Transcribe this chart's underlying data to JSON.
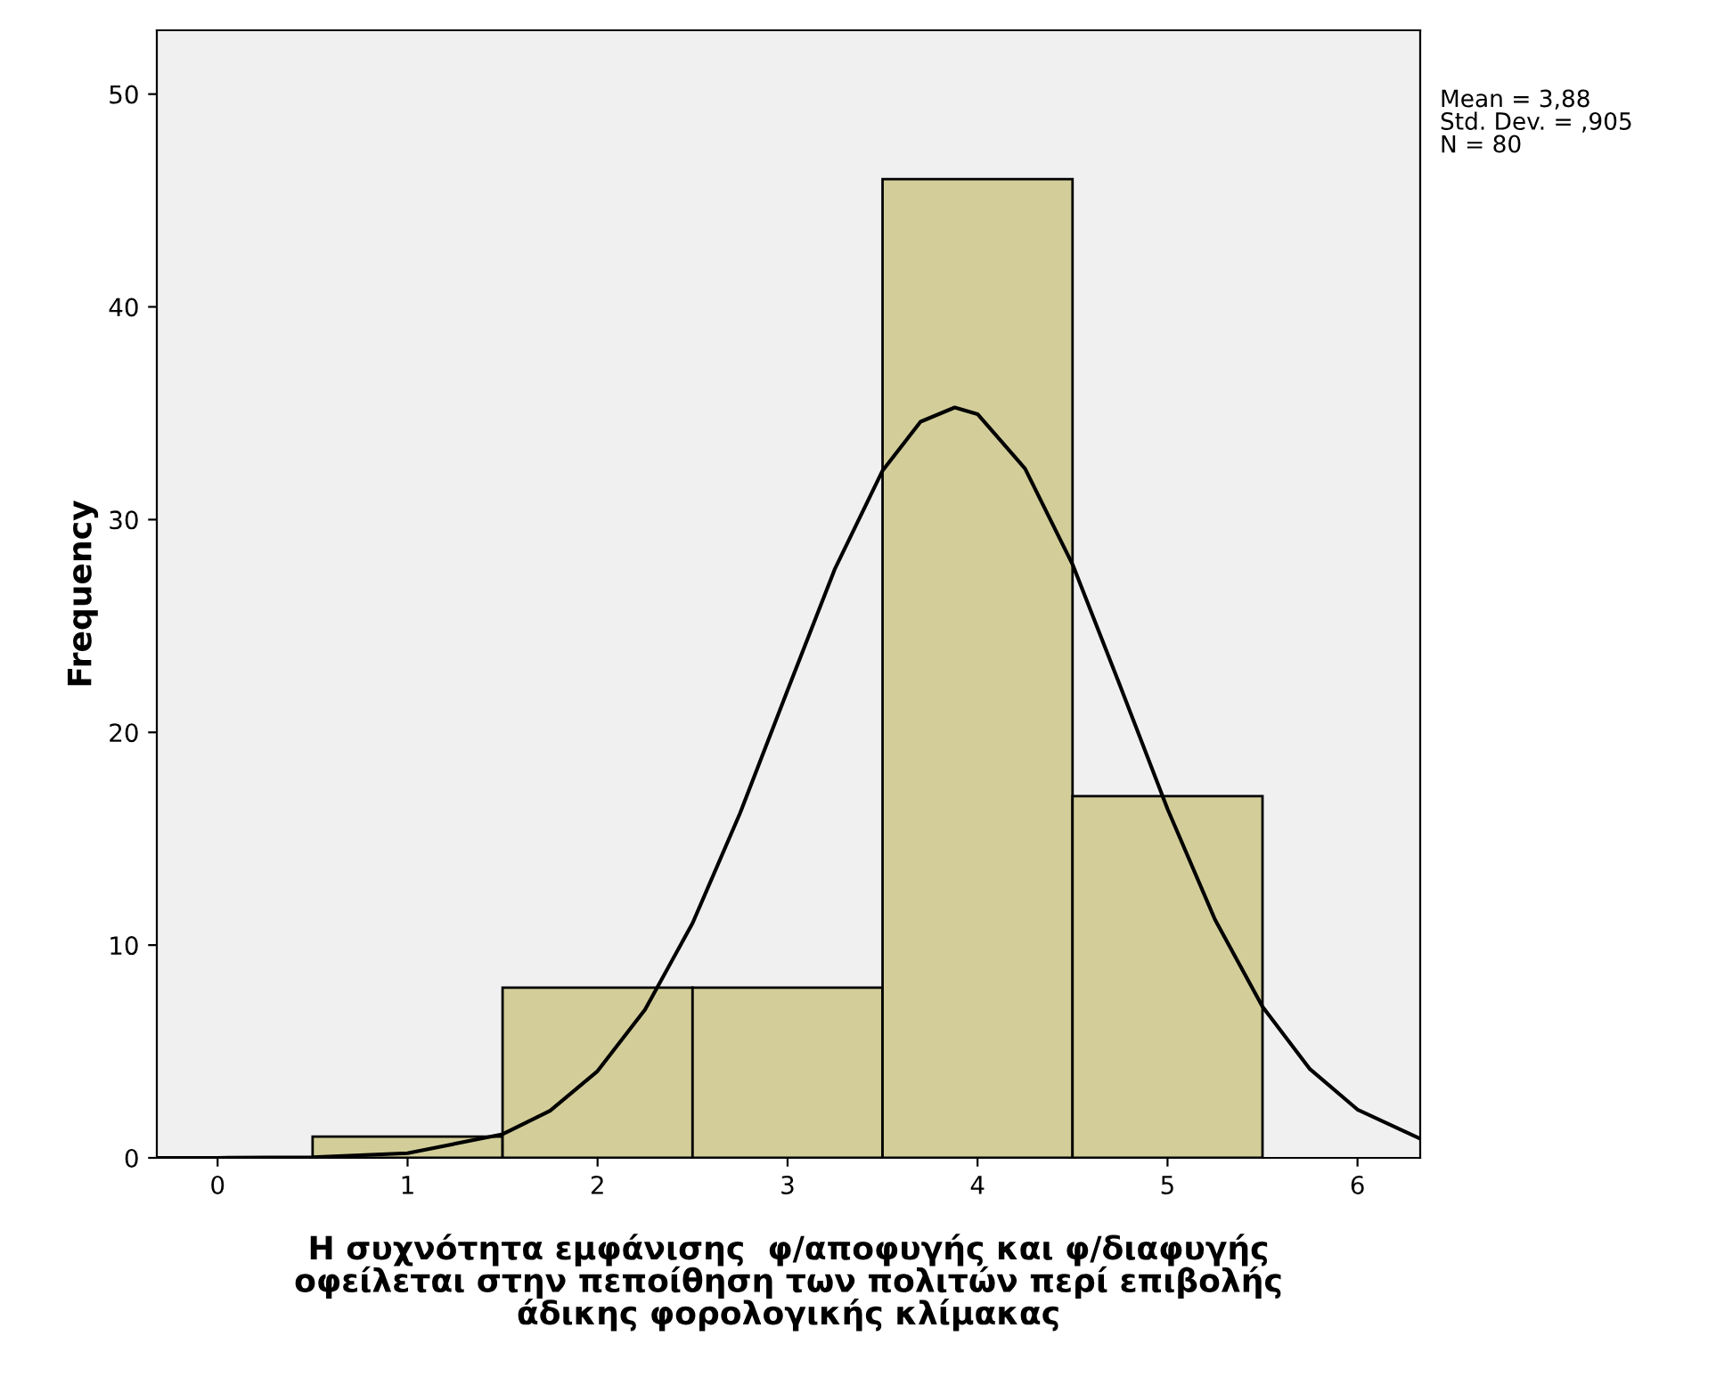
{
  "chart_data": {
    "type": "histogram",
    "xlabel": "Η συχνότητα εμφάνισης  φ/αποφυγής και φ/διαφυγής\nοφείλεται στην πεποίθηση των πολιτών περί επιβολής\nάδικης φορολογικής κλίμακας",
    "ylabel": "Frequency",
    "bins": [
      0.5,
      1.5,
      2.5,
      3.5,
      4.5,
      5.5
    ],
    "values": [
      1,
      8,
      8,
      46,
      17
    ],
    "color": "#d3ce99",
    "series": [
      {
        "type": "line",
        "color": "#000000",
        "x": [
          -0.32,
          0.0,
          0.5,
          1.0,
          1.5,
          1.75,
          2.0,
          2.25,
          2.5,
          2.75,
          3.0,
          3.25,
          3.5,
          3.7,
          3.88,
          4.0,
          4.25,
          4.5,
          4.75,
          5.0,
          5.25,
          5.5,
          5.75,
          6.0,
          6.33
        ],
        "values": [
          0.0,
          0.0,
          0.03,
          0.22,
          1.11,
          2.21,
          4.08,
          6.97,
          11.03,
          16.2,
          21.98,
          27.7,
          32.3,
          34.6,
          35.27,
          34.96,
          32.4,
          27.9,
          22.2,
          16.4,
          11.2,
          7.11,
          4.17,
          2.27,
          0.9
        ]
      }
    ],
    "xlim": [
      -0.32,
      6.33
    ],
    "xticks": [
      0,
      1,
      2,
      3,
      4,
      5,
      6
    ],
    "ylim": [
      0,
      53
    ],
    "yticks": [
      0,
      10,
      20,
      30,
      40,
      50
    ],
    "grid": false,
    "annotations": [
      "Mean = 3,88\nStd. Dev. = ,905\nN = 80"
    ]
  }
}
